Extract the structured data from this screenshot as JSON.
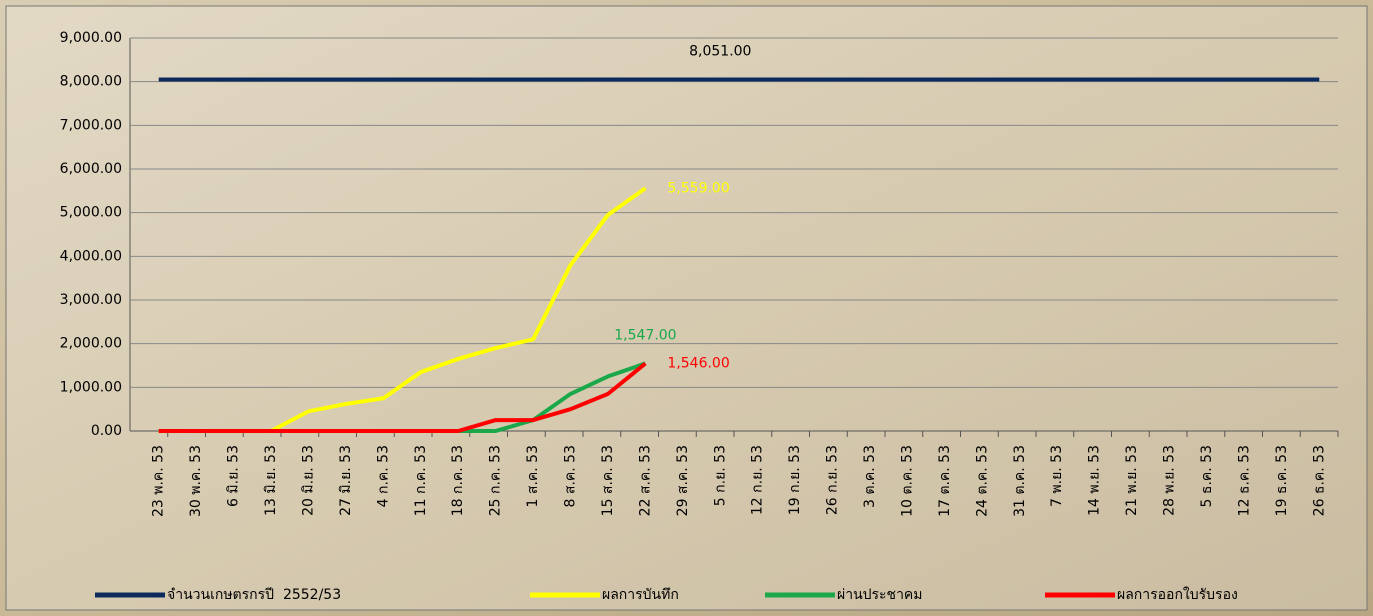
{
  "chart_data": {
    "type": "line",
    "categories": [
      "23 พ.ค. 53",
      "30 พ.ค. 53",
      "6 มิ.ย. 53",
      "13 มิ.ย. 53",
      "20 มิ.ย. 53",
      "27 มิ.ย. 53",
      "4 ก.ค. 53",
      "11 ก.ค. 53",
      "18 ก.ค. 53",
      "25 ก.ค. 53",
      "1 ส.ค. 53",
      "8 ส.ค. 53",
      "15 ส.ค. 53",
      "22 ส.ค. 53",
      "29 ส.ค. 53",
      "5 ก.ย. 53",
      "12 ก.ย. 53",
      "19 ก.ย. 53",
      "26 ก.ย. 53",
      "3 ต.ค. 53",
      "10 ต.ค. 53",
      "17 ต.ค. 53",
      "24 ต.ค. 53",
      "31 ต.ค. 53",
      "7 พ.ย. 53",
      "14 พ.ย. 53",
      "21 พ.ย. 53",
      "28 พ.ย. 53",
      "5 ธ.ค. 53",
      "12 ธ.ค. 53",
      "19 ธ.ค. 53",
      "26 ธ.ค. 53"
    ],
    "series": [
      {
        "name": "จำนวนเกษตรกรปี  2552/53",
        "color": "#0d2a5c",
        "values": [
          8051,
          8051,
          8051,
          8051,
          8051,
          8051,
          8051,
          8051,
          8051,
          8051,
          8051,
          8051,
          8051,
          8051,
          8051,
          8051,
          8051,
          8051,
          8051,
          8051,
          8051,
          8051,
          8051,
          8051,
          8051,
          8051,
          8051,
          8051,
          8051,
          8051,
          8051,
          8051
        ],
        "value_labels": [
          null,
          null,
          null,
          null,
          null,
          null,
          null,
          null,
          null,
          null,
          null,
          null,
          null,
          null,
          null,
          "8,051.00",
          null,
          null,
          null,
          null,
          null,
          null,
          null,
          null,
          null,
          null,
          null,
          null,
          null,
          null,
          null,
          null
        ]
      },
      {
        "name": "ผลการบันทึก",
        "color": "#ffff00",
        "values": [
          0,
          0,
          0,
          0,
          450,
          620,
          750,
          1350,
          1650,
          1900,
          2100,
          3800,
          4950,
          5559,
          null,
          null,
          null,
          null,
          null,
          null,
          null,
          null,
          null,
          null,
          null,
          null,
          null,
          null,
          null,
          null,
          null,
          null
        ],
        "value_labels": [
          null,
          null,
          null,
          null,
          null,
          null,
          null,
          null,
          null,
          null,
          null,
          null,
          null,
          "5,559.00",
          null,
          null,
          null,
          null,
          null,
          null,
          null,
          null,
          null,
          null,
          null,
          null,
          null,
          null,
          null,
          null,
          null,
          null
        ]
      },
      {
        "name": "ผ่านประชาคม",
        "color": "#1aa84a",
        "values": [
          0,
          0,
          0,
          0,
          0,
          0,
          0,
          0,
          0,
          0,
          250,
          850,
          1250,
          1547,
          null,
          null,
          null,
          null,
          null,
          null,
          null,
          null,
          null,
          null,
          null,
          null,
          null,
          null,
          null,
          null,
          null,
          null
        ],
        "value_labels": [
          null,
          null,
          null,
          null,
          null,
          null,
          null,
          null,
          null,
          null,
          null,
          null,
          null,
          "1,547.00",
          null,
          null,
          null,
          null,
          null,
          null,
          null,
          null,
          null,
          null,
          null,
          null,
          null,
          null,
          null,
          null,
          null,
          null
        ]
      },
      {
        "name": "ผลการออกใบรับรอง",
        "color": "#ff0000",
        "values": [
          0,
          0,
          0,
          0,
          0,
          0,
          0,
          0,
          0,
          250,
          250,
          500,
          850,
          1546,
          null,
          null,
          null,
          null,
          null,
          null,
          null,
          null,
          null,
          null,
          null,
          null,
          null,
          null,
          null,
          null,
          null,
          null
        ],
        "value_labels": [
          null,
          null,
          null,
          null,
          null,
          null,
          null,
          null,
          null,
          null,
          null,
          null,
          null,
          "1,546.00",
          null,
          null,
          null,
          null,
          null,
          null,
          null,
          null,
          null,
          null,
          null,
          null,
          null,
          null,
          null,
          null,
          null,
          null
        ]
      }
    ],
    "ylim": [
      0,
      9000
    ],
    "yticks": [
      {
        "value": 0,
        "label": "0.00"
      },
      {
        "value": 1000,
        "label": "1,000.00"
      },
      {
        "value": 2000,
        "label": "2,000.00"
      },
      {
        "value": 3000,
        "label": "3,000.00"
      },
      {
        "value": 4000,
        "label": "4,000.00"
      },
      {
        "value": 5000,
        "label": "5,000.00"
      },
      {
        "value": 6000,
        "label": "6,000.00"
      },
      {
        "value": 7000,
        "label": "7,000.00"
      },
      {
        "value": 8000,
        "label": "8,000.00"
      },
      {
        "value": 9000,
        "label": "9,000.00"
      }
    ],
    "grid": true,
    "legend": "bottom"
  }
}
